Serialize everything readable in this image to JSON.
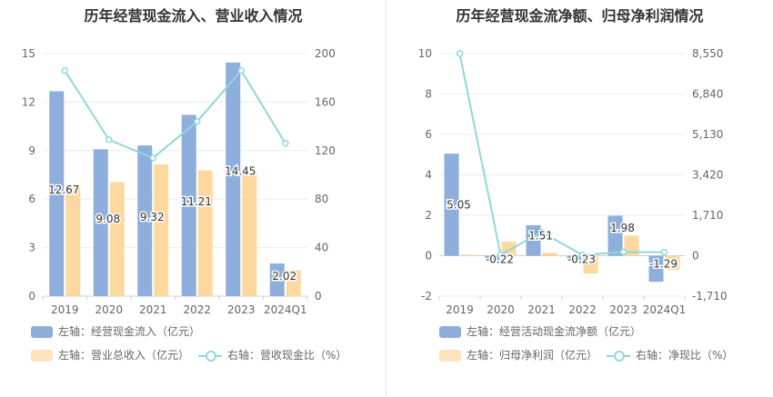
{
  "colors": {
    "bar_primary": "#8eaedc",
    "bar_secondary": "#fdd9a0",
    "line": "#8fd8de",
    "axis_text": "#666666",
    "grid": "#ececec"
  },
  "left": {
    "title": "历年经营现金流入、营业收入情况",
    "legend": {
      "bar1": "左轴：经营现金流入（亿元）",
      "bar2": "左轴：营业总收入（亿元）",
      "line": "右轴：营收现金比（%）"
    }
  },
  "right": {
    "title": "历年经营现金流净额、归母净利润情况",
    "legend": {
      "bar1": "左轴：经营活动现金流净额（亿元）",
      "bar2": "左轴：归母净利润（亿元）",
      "line": "右轴：净现比（%）"
    }
  },
  "chart_data": [
    {
      "type": "bar",
      "title": "历年经营现金流入、营业收入情况",
      "categories": [
        "2019",
        "2020",
        "2021",
        "2022",
        "2023",
        "2024Q1"
      ],
      "y_left": {
        "ticks": [
          "0",
          "3",
          "6",
          "9",
          "12",
          "15"
        ],
        "lim": [
          0,
          15
        ]
      },
      "y_right": {
        "ticks": [
          "0",
          "40",
          "80",
          "120",
          "160",
          "200"
        ],
        "lim": [
          0,
          200
        ]
      },
      "series": [
        {
          "name": "左轴：经营现金流入（亿元）",
          "axis": "left",
          "kind": "bar",
          "values": [
            12.67,
            9.08,
            9.32,
            11.21,
            14.45,
            2.02
          ],
          "labels": [
            "12.67",
            "9.08",
            "9.32",
            "11.21",
            "14.45",
            "2.02"
          ]
        },
        {
          "name": "左轴：营业总收入（亿元）",
          "axis": "left",
          "kind": "bar",
          "values": [
            6.8,
            7.05,
            8.15,
            7.78,
            7.75,
            1.6
          ]
        },
        {
          "name": "右轴：营收现金比（%）",
          "axis": "right",
          "kind": "line",
          "values": [
            186,
            129,
            114,
            144,
            186,
            126
          ]
        }
      ],
      "grid": true,
      "legend_position": "bottom"
    },
    {
      "type": "bar",
      "title": "历年经营现金流净额、归母净利润情况",
      "categories": [
        "2019",
        "2020",
        "2021",
        "2022",
        "2023",
        "2024Q1"
      ],
      "y_left": {
        "ticks": [
          "-2",
          "0",
          "2",
          "4",
          "6",
          "8",
          "10"
        ],
        "lim": [
          -2,
          10
        ]
      },
      "y_right": {
        "ticks": [
          "-1,710",
          "0",
          "1,710",
          "3,420",
          "5,130",
          "6,840",
          "8,550"
        ],
        "lim": [
          -1710,
          8550
        ]
      },
      "series": [
        {
          "name": "左轴：经营活动现金流净额（亿元）",
          "axis": "left",
          "kind": "bar",
          "values": [
            5.05,
            -0.22,
            1.51,
            -0.23,
            1.98,
            -1.29
          ],
          "labels": [
            "5.05",
            "-0.22",
            "1.51",
            "-0.23",
            "1.98",
            "-1.29"
          ]
        },
        {
          "name": "左轴：归母净利润（亿元）",
          "axis": "left",
          "kind": "bar",
          "values": [
            0.05,
            0.7,
            0.15,
            -0.88,
            1.0,
            -0.7
          ]
        },
        {
          "name": "右轴：净现比（%）",
          "axis": "right",
          "kind": "line",
          "values": [
            8550,
            40,
            1000,
            30,
            160,
            150
          ]
        }
      ],
      "grid": true,
      "legend_position": "bottom"
    }
  ]
}
